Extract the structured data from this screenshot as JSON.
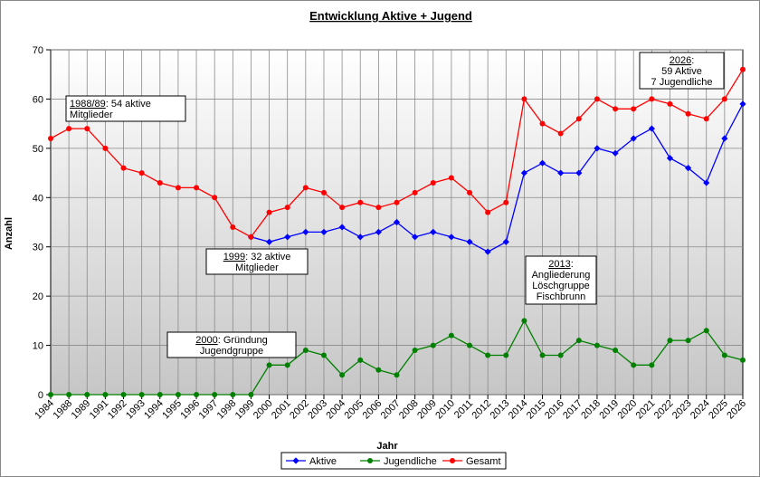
{
  "chart_data": {
    "type": "line",
    "title": "Entwicklung Aktive + Jugend",
    "xlabel": "Jahr",
    "ylabel": "Anzahl",
    "ylim": [
      0,
      70
    ],
    "yticks": [
      0,
      10,
      20,
      30,
      40,
      50,
      60,
      70
    ],
    "grid": true,
    "legend_position": "bottom",
    "categories": [
      "1984",
      "1988",
      "1989",
      "1991",
      "1992",
      "1993",
      "1994",
      "1995",
      "1996",
      "1997",
      "1998",
      "1999",
      "2000",
      "2001",
      "2002",
      "2003",
      "2004",
      "2005",
      "2006",
      "2007",
      "2008",
      "2009",
      "2010",
      "2011",
      "2012",
      "2013",
      "2014",
      "2015",
      "2016",
      "2017",
      "2018",
      "2019",
      "2020",
      "2021",
      "2022",
      "2023",
      "2024",
      "2025",
      "2026"
    ],
    "series": [
      {
        "name": "Aktive",
        "color": "#0000ff",
        "values": [
          null,
          null,
          null,
          null,
          null,
          null,
          null,
          null,
          null,
          null,
          null,
          32,
          31,
          32,
          33,
          33,
          34,
          32,
          33,
          35,
          32,
          33,
          32,
          31,
          29,
          31,
          45,
          47,
          45,
          45,
          50,
          49,
          52,
          54,
          48,
          46,
          43,
          52,
          59
        ]
      },
      {
        "name": "Jugendliche",
        "color": "#008000",
        "values": [
          0,
          0,
          0,
          0,
          0,
          0,
          0,
          0,
          0,
          0,
          0,
          0,
          6,
          6,
          9,
          8,
          4,
          7,
          5,
          4,
          9,
          10,
          12,
          10,
          8,
          8,
          15,
          8,
          8,
          11,
          10,
          9,
          6,
          6,
          11,
          11,
          13,
          8,
          7
        ]
      },
      {
        "name": "Gesamt",
        "color": "#ff0000",
        "values": [
          52,
          54,
          54,
          50,
          46,
          45,
          43,
          42,
          42,
          40,
          34,
          32,
          37,
          38,
          42,
          41,
          38,
          39,
          38,
          39,
          41,
          43,
          44,
          41,
          37,
          39,
          60,
          55,
          53,
          56,
          60,
          58,
          58,
          60,
          59,
          57,
          56,
          60,
          66
        ]
      }
    ],
    "annotations": [
      {
        "underlined": "1988/89",
        "rest": ": 54 aktive",
        "line2": "Mitglieder"
      },
      {
        "underlined": "1999",
        "rest": ": 32 aktive",
        "line2": "Mitglieder"
      },
      {
        "underlined": "2000",
        "rest": ": Gründung",
        "line2": "Jugendgruppe"
      },
      {
        "underlined": "2013",
        "rest": ":",
        "line2": "Angliederung",
        "line3": "Löschgruppe",
        "line4": "Fischbrunn"
      },
      {
        "underlined": "2026",
        "rest": ":",
        "line2": "59 Aktive",
        "line3": "7 Jugendliche"
      }
    ]
  }
}
